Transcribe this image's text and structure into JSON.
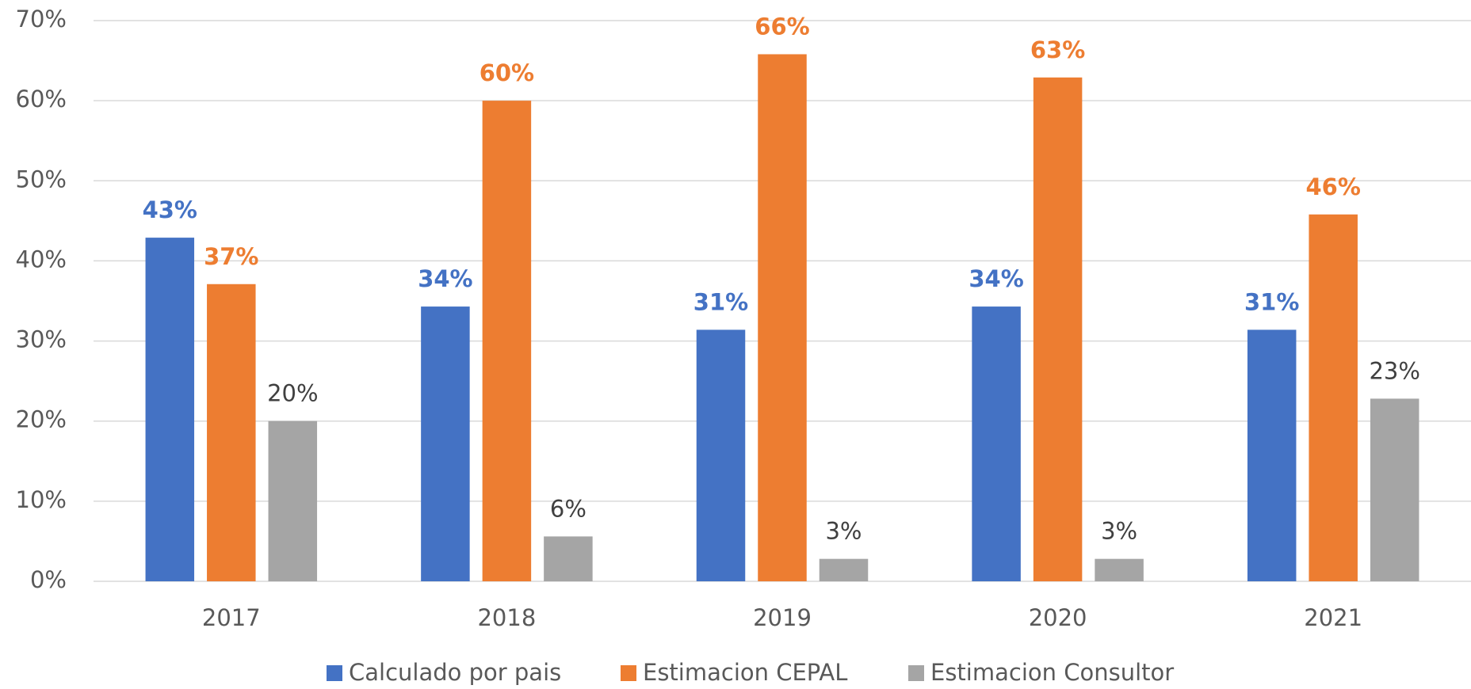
{
  "chart_data": {
    "type": "bar",
    "categories": [
      "2017",
      "2018",
      "2019",
      "2020",
      "2021"
    ],
    "series": [
      {
        "name": "Calculado por pais",
        "color": "#4472c4",
        "label_color": "#4472c4",
        "label_bold": true,
        "values": [
          42.9,
          34.3,
          31.4,
          34.3,
          31.4
        ],
        "value_labels": [
          "43%",
          "34%",
          "31%",
          "34%",
          "31%"
        ]
      },
      {
        "name": "Estimacion CEPAL",
        "color": "#ed7d31",
        "label_color": "#ed7d31",
        "label_bold": true,
        "values": [
          37.1,
          60,
          65.8,
          62.9,
          45.8
        ],
        "value_labels": [
          "37%",
          "60%",
          "66%",
          "63%",
          "46%"
        ]
      },
      {
        "name": "Estimacion Consultor",
        "color": "#a5a5a5",
        "label_color": "#404040",
        "label_bold": false,
        "values": [
          20,
          5.6,
          2.8,
          2.8,
          22.8
        ],
        "value_labels": [
          "20%",
          "6%",
          "3%",
          "3%",
          "23%"
        ]
      }
    ],
    "ylim": [
      0,
      70
    ],
    "yticks": [
      {
        "value": 0,
        "label": "0%"
      },
      {
        "value": 10,
        "label": "10%"
      },
      {
        "value": 20,
        "label": "20%"
      },
      {
        "value": 30,
        "label": "30%"
      },
      {
        "value": 40,
        "label": "40%"
      },
      {
        "value": 50,
        "label": "50%"
      },
      {
        "value": 60,
        "label": "60%"
      },
      {
        "value": 70,
        "label": "70%"
      }
    ],
    "grid": true,
    "legend": "bottom"
  }
}
